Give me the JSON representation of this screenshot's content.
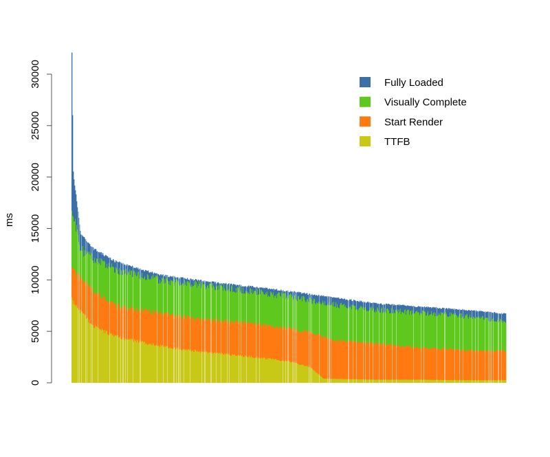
{
  "chart_data": {
    "type": "bar",
    "stacked": false,
    "overlaid": true,
    "ylabel": "ms",
    "xlabel": "",
    "title": "",
    "ylim": [
      0,
      32000
    ],
    "yticks": [
      0,
      5000,
      10000,
      15000,
      20000,
      25000,
      30000
    ],
    "ytick_labels": [
      "0",
      "5000",
      "10000",
      "15000",
      "20000",
      "25000",
      "30000"
    ],
    "legend_position": "top-right",
    "grid": false,
    "series": [
      {
        "name": "Fully Loaded",
        "color": "#3a6fa8",
        "profile": [
          [
            0,
            32000
          ],
          [
            0.003,
            20500
          ],
          [
            0.02,
            14500
          ],
          [
            0.05,
            13000
          ],
          [
            0.1,
            11800
          ],
          [
            0.2,
            10500
          ],
          [
            0.3,
            9900
          ],
          [
            0.4,
            9400
          ],
          [
            0.5,
            8900
          ],
          [
            0.6,
            8300
          ],
          [
            0.7,
            7700
          ],
          [
            0.8,
            7400
          ],
          [
            0.9,
            7100
          ],
          [
            1.0,
            6700
          ]
        ]
      },
      {
        "name": "Visually Complete",
        "color": "#5ec81e",
        "profile": [
          [
            0,
            17000
          ],
          [
            0.02,
            13000
          ],
          [
            0.05,
            12000
          ],
          [
            0.1,
            11000
          ],
          [
            0.2,
            10000
          ],
          [
            0.3,
            9500
          ],
          [
            0.4,
            9000
          ],
          [
            0.5,
            8400
          ],
          [
            0.6,
            7600
          ],
          [
            0.7,
            7100
          ],
          [
            0.8,
            6800
          ],
          [
            0.9,
            6500
          ],
          [
            1.0,
            6000
          ]
        ]
      },
      {
        "name": "Start Render",
        "color": "#ff7a10",
        "profile": [
          [
            0,
            11000
          ],
          [
            0.05,
            9000
          ],
          [
            0.1,
            7500
          ],
          [
            0.2,
            6800
          ],
          [
            0.3,
            6200
          ],
          [
            0.4,
            5800
          ],
          [
            0.5,
            5300
          ],
          [
            0.55,
            4900
          ],
          [
            0.6,
            4200
          ],
          [
            0.7,
            3800
          ],
          [
            0.8,
            3400
          ],
          [
            0.9,
            3200
          ],
          [
            1.0,
            3100
          ]
        ]
      },
      {
        "name": "TTFB",
        "color": "#c8c816",
        "profile": [
          [
            0,
            8000
          ],
          [
            0.05,
            5500
          ],
          [
            0.1,
            4500
          ],
          [
            0.2,
            3600
          ],
          [
            0.3,
            3000
          ],
          [
            0.4,
            2600
          ],
          [
            0.5,
            2100
          ],
          [
            0.55,
            1500
          ],
          [
            0.58,
            400
          ],
          [
            0.7,
            300
          ],
          [
            0.8,
            300
          ],
          [
            0.9,
            250
          ],
          [
            1.0,
            250
          ]
        ]
      }
    ]
  }
}
